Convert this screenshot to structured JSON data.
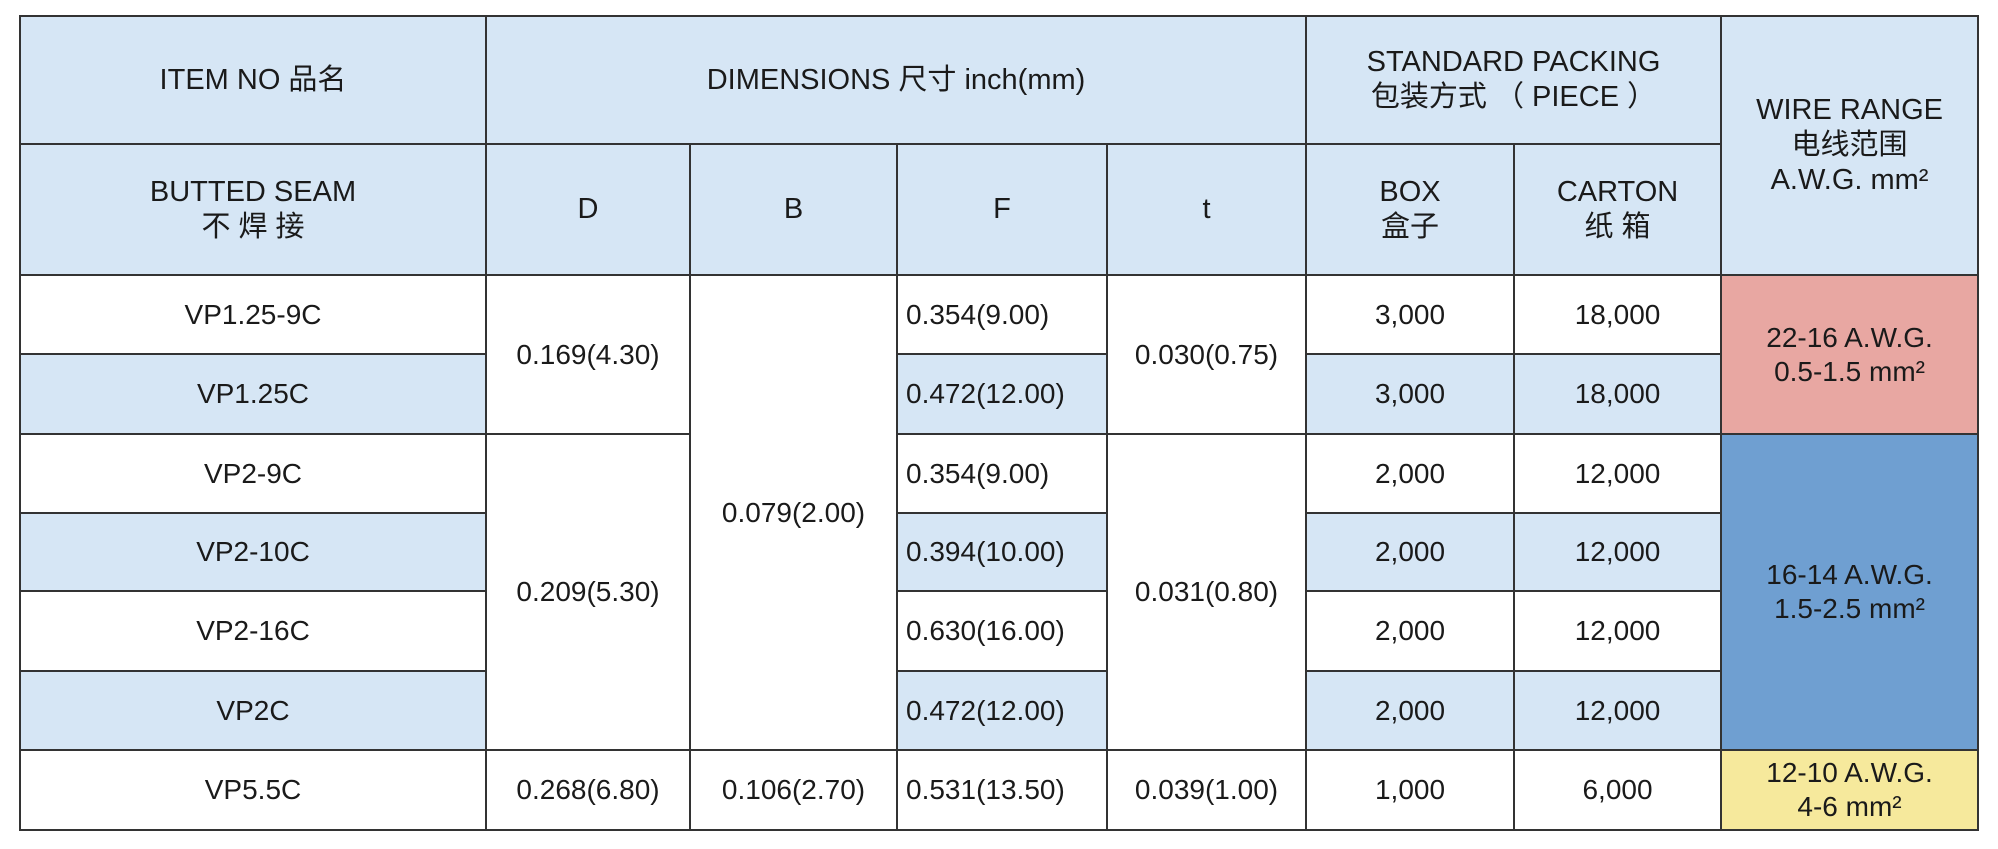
{
  "header": {
    "item_no": "ITEM NO 品名",
    "dimensions": "DIMENSIONS 尺寸  inch(mm)",
    "standard_packing": [
      "STANDARD PACKING",
      "包装方式 （ PIECE ）"
    ],
    "wire_range": [
      "WIRE RANGE",
      "电线范围",
      "A.W.G.  mm²"
    ],
    "butted_seam": [
      "BUTTED  SEAM",
      "不 焊 接"
    ],
    "d": "D",
    "b": "B",
    "f": "F",
    "t": "t",
    "box": [
      "BOX",
      "盒子"
    ],
    "carton": [
      "CARTON",
      "纸 箱"
    ]
  },
  "table": {
    "rows": [
      [
        "VP1.25-9C",
        "0.169(4.30)",
        "0.079(2.00)",
        "0.354(9.00)",
        "0.030(0.75)",
        "3,000",
        "18,000",
        [
          "22-16 A.W.G.",
          "0.5-1.5   mm²"
        ]
      ],
      [
        "VP1.25C",
        "0.472(12.00)",
        "3,000",
        "18,000"
      ],
      [
        "VP2-9C",
        "0.209(5.30)",
        "0.354(9.00)",
        "0.031(0.80)",
        "2,000",
        "12,000",
        [
          "16-14 A.W.G.",
          "1.5-2.5   mm²"
        ]
      ],
      [
        "VP2-10C",
        "0.394(10.00)",
        "2,000",
        "12,000"
      ],
      [
        "VP2-16C",
        "0.630(16.00)",
        "2,000",
        "12,000"
      ],
      [
        "VP2C",
        "0.472(12.00)",
        "2,000",
        "12,000"
      ],
      [
        "VP5.5C",
        "0.268(6.80)",
        "0.106(2.70)",
        "0.531(13.50)",
        "0.039(1.00)",
        "1,000",
        "6,000",
        [
          "12-10  A.W.G.",
          "4-6   mm²"
        ]
      ]
    ]
  }
}
